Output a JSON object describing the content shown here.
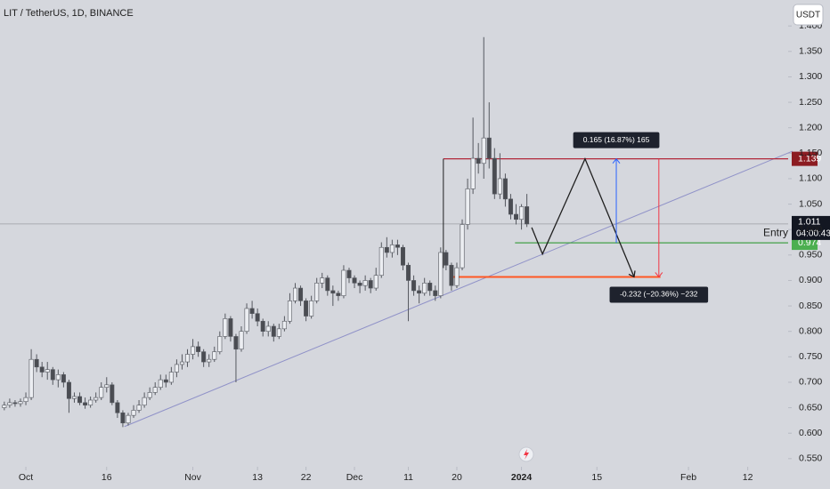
{
  "chart_data": {
    "type": "candlestick",
    "title": "LIT / TetherUS, 1D, BINANCE",
    "currency": "USDT",
    "up_color": "#eceef2",
    "down_color": "#4a4c52",
    "wick_color": "#55585f",
    "x": [
      -4,
      -3,
      -2,
      -1,
      0,
      1,
      2,
      3,
      4,
      5,
      6,
      7,
      8,
      9,
      10,
      11,
      12,
      13,
      14,
      15,
      16,
      17,
      18,
      19,
      20,
      21,
      22,
      23,
      24,
      25,
      26,
      27,
      28,
      29,
      30,
      31,
      32,
      33,
      34,
      35,
      36,
      37,
      38,
      39,
      40,
      41,
      42,
      43,
      44,
      45,
      46,
      47,
      48,
      49,
      50,
      51,
      52,
      53,
      54,
      55,
      56,
      57,
      58,
      59,
      60,
      61,
      62,
      63,
      64,
      65,
      66,
      67,
      68,
      69,
      70,
      71,
      72,
      73,
      74,
      75,
      76,
      77,
      78,
      79,
      80,
      81,
      82,
      83,
      84,
      85,
      86,
      87,
      88,
      89,
      90,
      91,
      92,
      93
    ],
    "open": [
      0.65,
      0.655,
      0.66,
      0.658,
      0.662,
      0.67,
      0.745,
      0.73,
      0.72,
      0.725,
      0.705,
      0.715,
      0.7,
      0.668,
      0.672,
      0.66,
      0.655,
      0.665,
      0.67,
      0.69,
      0.695,
      0.66,
      0.64,
      0.62,
      0.635,
      0.645,
      0.655,
      0.67,
      0.68,
      0.69,
      0.705,
      0.7,
      0.72,
      0.735,
      0.74,
      0.755,
      0.77,
      0.76,
      0.74,
      0.745,
      0.76,
      0.79,
      0.825,
      0.79,
      0.765,
      0.8,
      0.845,
      0.835,
      0.82,
      0.8,
      0.81,
      0.79,
      0.805,
      0.82,
      0.86,
      0.885,
      0.86,
      0.83,
      0.86,
      0.895,
      0.905,
      0.88,
      0.875,
      0.87,
      0.92,
      0.905,
      0.895,
      0.89,
      0.9,
      0.885,
      0.91,
      0.965,
      0.955,
      0.97,
      0.965,
      0.93,
      0.9,
      0.88,
      0.875,
      0.895,
      0.88,
      0.87,
      0.955,
      0.93,
      0.89,
      0.925,
      1.01,
      1.08,
      1.14,
      1.13,
      1.18,
      1.14,
      1.07,
      1.1,
      1.06,
      1.03,
      1.02,
      1.045
    ],
    "high": [
      0.662,
      0.668,
      0.665,
      0.668,
      0.68,
      0.765,
      0.755,
      0.74,
      0.74,
      0.73,
      0.725,
      0.72,
      0.705,
      0.68,
      0.68,
      0.67,
      0.672,
      0.68,
      0.7,
      0.71,
      0.7,
      0.665,
      0.645,
      0.64,
      0.655,
      0.665,
      0.68,
      0.69,
      0.7,
      0.715,
      0.715,
      0.73,
      0.745,
      0.755,
      0.765,
      0.785,
      0.78,
      0.765,
      0.755,
      0.77,
      0.8,
      0.835,
      0.83,
      0.795,
      0.81,
      0.855,
      0.86,
      0.845,
      0.825,
      0.82,
      0.815,
      0.815,
      0.83,
      0.875,
      0.895,
      0.89,
      0.865,
      0.87,
      0.905,
      0.915,
      0.91,
      0.89,
      0.88,
      0.93,
      0.925,
      0.91,
      0.9,
      0.91,
      0.905,
      0.925,
      0.975,
      0.985,
      0.98,
      0.98,
      0.97,
      0.935,
      0.91,
      0.89,
      0.905,
      0.9,
      0.89,
      0.965,
      0.96,
      0.935,
      0.935,
      1.02,
      1.1,
      1.22,
      1.17,
      1.378,
      1.25,
      1.16,
      1.15,
      1.11,
      1.07,
      1.05,
      1.05,
      1.07
    ],
    "low": [
      0.645,
      0.65,
      0.652,
      0.652,
      0.655,
      0.665,
      0.72,
      0.71,
      0.705,
      0.695,
      0.69,
      0.69,
      0.64,
      0.66,
      0.655,
      0.648,
      0.65,
      0.66,
      0.665,
      0.68,
      0.655,
      0.63,
      0.612,
      0.615,
      0.63,
      0.64,
      0.65,
      0.665,
      0.675,
      0.685,
      0.69,
      0.695,
      0.71,
      0.725,
      0.73,
      0.745,
      0.75,
      0.73,
      0.73,
      0.74,
      0.755,
      0.785,
      0.78,
      0.7,
      0.76,
      0.795,
      0.825,
      0.81,
      0.79,
      0.79,
      0.78,
      0.785,
      0.8,
      0.815,
      0.855,
      0.85,
      0.82,
      0.825,
      0.855,
      0.885,
      0.87,
      0.85,
      0.86,
      0.865,
      0.895,
      0.885,
      0.875,
      0.88,
      0.875,
      0.88,
      0.905,
      0.945,
      0.945,
      0.95,
      0.92,
      0.82,
      0.87,
      0.855,
      0.87,
      0.87,
      0.86,
      0.865,
      0.92,
      0.88,
      0.885,
      0.92,
      1.0,
      1.07,
      1.11,
      1.1,
      1.12,
      1.06,
      1.06,
      1.045,
      1.02,
      1.01,
      1.0,
      1.005
    ],
    "close": [
      0.655,
      0.66,
      0.658,
      0.662,
      0.67,
      0.745,
      0.73,
      0.72,
      0.725,
      0.705,
      0.715,
      0.7,
      0.668,
      0.672,
      0.66,
      0.655,
      0.665,
      0.67,
      0.69,
      0.695,
      0.66,
      0.64,
      0.62,
      0.635,
      0.645,
      0.655,
      0.67,
      0.68,
      0.69,
      0.705,
      0.7,
      0.72,
      0.735,
      0.74,
      0.755,
      0.77,
      0.76,
      0.74,
      0.745,
      0.76,
      0.79,
      0.825,
      0.79,
      0.765,
      0.8,
      0.845,
      0.835,
      0.82,
      0.8,
      0.81,
      0.79,
      0.805,
      0.82,
      0.86,
      0.885,
      0.86,
      0.83,
      0.86,
      0.895,
      0.905,
      0.88,
      0.875,
      0.87,
      0.92,
      0.905,
      0.895,
      0.89,
      0.9,
      0.885,
      0.91,
      0.965,
      0.955,
      0.97,
      0.965,
      0.93,
      0.9,
      0.88,
      0.875,
      0.895,
      0.88,
      0.87,
      0.955,
      0.93,
      0.89,
      0.925,
      1.01,
      1.08,
      1.14,
      1.13,
      1.18,
      1.14,
      1.07,
      1.1,
      1.06,
      1.03,
      1.02,
      1.045,
      1.011
    ],
    "xlim": [
      -4.8,
      141.5
    ],
    "ylim": [
      0.534,
      1.451
    ],
    "xticks": [
      {
        "value": 0,
        "label": "Oct"
      },
      {
        "value": 15,
        "label": "16"
      },
      {
        "value": 31,
        "label": "Nov"
      },
      {
        "value": 43,
        "label": "13"
      },
      {
        "value": 52,
        "label": "22"
      },
      {
        "value": 61,
        "label": "Dec"
      },
      {
        "value": 71,
        "label": "11"
      },
      {
        "value": 80,
        "label": "20"
      },
      {
        "value": 92,
        "label": "2024"
      },
      {
        "value": 106,
        "label": "15"
      },
      {
        "value": 123,
        "label": "Feb"
      },
      {
        "value": 134,
        "label": "12"
      }
    ],
    "yticks": [
      {
        "value": 0.55,
        "label": "0.550"
      },
      {
        "value": 0.6,
        "label": "0.600"
      },
      {
        "value": 0.65,
        "label": "0.650"
      },
      {
        "value": 0.7,
        "label": "0.700"
      },
      {
        "value": 0.75,
        "label": "0.750"
      },
      {
        "value": 0.8,
        "label": "0.800"
      },
      {
        "value": 0.85,
        "label": "0.850"
      },
      {
        "value": 0.9,
        "label": "0.900"
      },
      {
        "value": 0.95,
        "label": "0.950"
      },
      {
        "value": 1.0,
        "label": "1.000"
      },
      {
        "value": 1.05,
        "label": "1.050"
      },
      {
        "value": 1.1,
        "label": "1.100"
      },
      {
        "value": 1.15,
        "label": "1.150"
      },
      {
        "value": 1.2,
        "label": "1.200"
      },
      {
        "value": 1.25,
        "label": "1.250"
      },
      {
        "value": 1.3,
        "label": "1.300"
      },
      {
        "value": 1.35,
        "label": "1.350"
      },
      {
        "value": 1.4,
        "label": "1.400"
      }
    ],
    "last_price": {
      "value": 1.011,
      "countdown": "04:00:43"
    },
    "levels": [
      {
        "value": 1.139,
        "color": "#b2283a",
        "x_from": 77.5,
        "label_bg": "#8c1c22"
      },
      {
        "value": 0.974,
        "color": "#43a047",
        "x_from": 90.8,
        "label": "Entry",
        "label_bg": "#4caf50"
      },
      {
        "value": 0.907,
        "color": "#ff5722",
        "x_from": 78.7,
        "x_to": 117.8
      }
    ],
    "trendline": {
      "x": [
        18.3,
        142.3
      ],
      "y": [
        0.613,
        1.154
      ],
      "color": "#9092c8"
    },
    "zigzag": {
      "x": [
        93.9,
        95.9,
        103.8,
        112.9
      ],
      "y": [
        1.004,
        0.952,
        1.139,
        0.907
      ],
      "color": "#1f1f1f"
    },
    "measures": [
      {
        "x": 109.6,
        "from": 0.974,
        "to": 1.139,
        "color": "#2962ff",
        "label": "0.165 (16.87%) 165"
      },
      {
        "x": 117.5,
        "from": 1.139,
        "to": 0.907,
        "color": "#f23645",
        "label": "-0.232 (−20.36%) −232"
      }
    ]
  }
}
